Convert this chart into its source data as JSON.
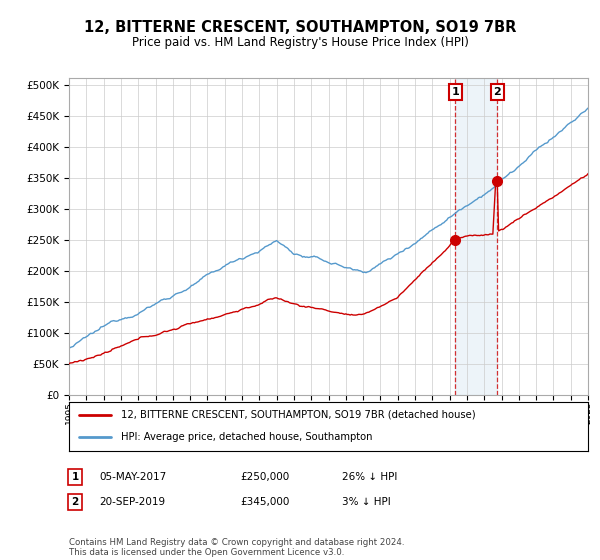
{
  "title": "12, BITTERNE CRESCENT, SOUTHAMPTON, SO19 7BR",
  "subtitle": "Price paid vs. HM Land Registry's House Price Index (HPI)",
  "hpi_color": "#5599cc",
  "price_color": "#cc0000",
  "marker_color": "#cc0000",
  "point1_year": 2017.37,
  "point2_year": 2019.72,
  "point1_price": 250000,
  "point2_price": 345000,
  "point1_date_str": "05-MAY-2017",
  "point2_date_str": "20-SEP-2019",
  "point1_pct": "26% ↓ HPI",
  "point2_pct": "3% ↓ HPI",
  "legend_price_label": "12, BITTERNE CRESCENT, SOUTHAMPTON, SO19 7BR (detached house)",
  "legend_hpi_label": "HPI: Average price, detached house, Southampton",
  "footer": "Contains HM Land Registry data © Crown copyright and database right 2024.\nThis data is licensed under the Open Government Licence v3.0.",
  "ylim": [
    0,
    510000
  ],
  "yticks": [
    0,
    50000,
    100000,
    150000,
    200000,
    250000,
    300000,
    350000,
    400000,
    450000,
    500000
  ],
  "xlim": [
    1995,
    2025
  ],
  "background_color": "#ffffff",
  "grid_color": "#cccccc"
}
